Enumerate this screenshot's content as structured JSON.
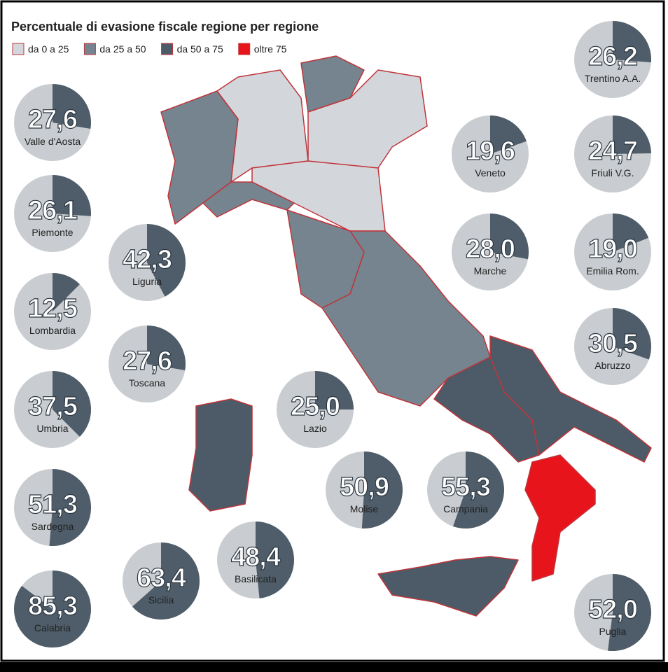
{
  "title": "Percentuale di evasione fiscale regione per regione",
  "legend": [
    {
      "label": "da 0 a 25",
      "color": "#d3d7db"
    },
    {
      "label": "da 25 a 50",
      "color": "#75848f"
    },
    {
      "label": "da 50 a 75",
      "color": "#4c5b67"
    },
    {
      "label": "oltre 75",
      "color": "#e8141c"
    }
  ],
  "pie_colors": {
    "background": "#c9cdd1",
    "wedge": "#4e5d69"
  },
  "regions": [
    {
      "name": "Trentino A.A.",
      "value": 26.2,
      "value_label": "26,2"
    },
    {
      "name": "Valle d'Aosta",
      "value": 27.6,
      "value_label": "27,6"
    },
    {
      "name": "Friuli V.G.",
      "value": 24.7,
      "value_label": "24,7"
    },
    {
      "name": "Veneto",
      "value": 19.6,
      "value_label": "19,6"
    },
    {
      "name": "Piemonte",
      "value": 26.1,
      "value_label": "26,1"
    },
    {
      "name": "Liguria",
      "value": 42.3,
      "value_label": "42,3"
    },
    {
      "name": "Emilia Rom.",
      "value": 19.0,
      "value_label": "19,0"
    },
    {
      "name": "Marche",
      "value": 28.0,
      "value_label": "28,0"
    },
    {
      "name": "Lombardia",
      "value": 12.5,
      "value_label": "12,5"
    },
    {
      "name": "Toscana",
      "value": 27.6,
      "value_label": "27,6"
    },
    {
      "name": "Abruzzo",
      "value": 30.5,
      "value_label": "30,5"
    },
    {
      "name": "Lazio",
      "value": 25.0,
      "value_label": "25,0"
    },
    {
      "name": "Umbria",
      "value": 37.5,
      "value_label": "37,5"
    },
    {
      "name": "Molise",
      "value": 50.9,
      "value_label": "50,9"
    },
    {
      "name": "Campania",
      "value": 55.3,
      "value_label": "55,3"
    },
    {
      "name": "Sardegna",
      "value": 51.3,
      "value_label": "51,3"
    },
    {
      "name": "Basilicata",
      "value": 48.4,
      "value_label": "48,4"
    },
    {
      "name": "Sicilia",
      "value": 63.4,
      "value_label": "63,4"
    },
    {
      "name": "Calabria",
      "value": 85.3,
      "value_label": "85,3"
    },
    {
      "name": "Puglia",
      "value": 52.0,
      "value_label": "52,0"
    }
  ]
}
